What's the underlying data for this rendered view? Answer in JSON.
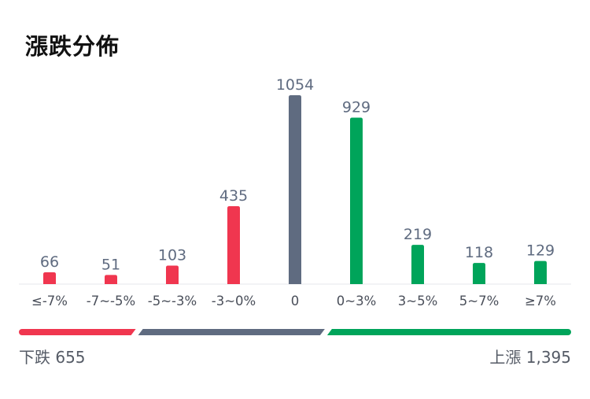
{
  "title": "漲跌分佈",
  "colors": {
    "down": "#f0364f",
    "flat": "#5f6b80",
    "up": "#00a45a",
    "value_text": "#5f6b80",
    "tick_text": "#4a4f5a",
    "baseline": "#e5e7eb"
  },
  "chart_data": {
    "type": "bar",
    "categories": [
      "≤-7%",
      "-7~-5%",
      "-5~-3%",
      "-3~0%",
      "0",
      "0~3%",
      "3~5%",
      "5~7%",
      "≥7%"
    ],
    "values": [
      66,
      51,
      103,
      435,
      1054,
      929,
      219,
      118,
      129
    ],
    "bar_groups": [
      "down",
      "down",
      "down",
      "down",
      "flat",
      "up",
      "up",
      "up",
      "up"
    ],
    "ylim": [
      0,
      1054
    ],
    "grid": false,
    "legend": "none"
  },
  "summary": {
    "down_label": "下跌",
    "down_value": "655",
    "up_label": "上漲",
    "up_value": "1,395",
    "flat_count": 1054
  }
}
